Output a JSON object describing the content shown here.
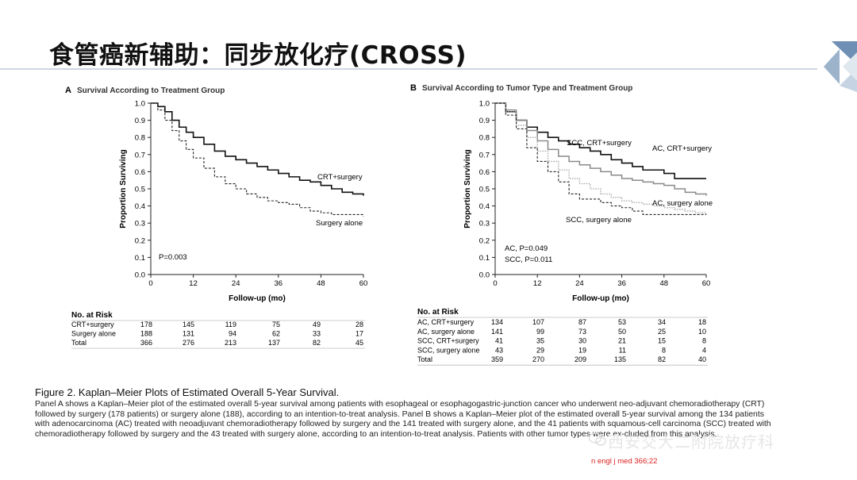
{
  "slide": {
    "title": "食管癌新辅助：同步放化疗(CROSS)",
    "reference": "n engl j med 366;22",
    "watermark": "西安交大二附院放疗科"
  },
  "caption": {
    "title": "Figure 2. Kaplan–Meier Plots of Estimated Overall 5-Year Survival.",
    "body": "Panel A shows a Kaplan–Meier plot of the estimated overall 5-year survival among patients with esophageal or esophagogastric-junction cancer who underwent neo-adjuvant chemoradiotherapy (CRT) followed by surgery (178 patients) or surgery alone (188), according to an intention-to-treat analysis. Panel B shows a Kaplan–Meier plot of the estimated overall 5-year survival among the 134 patients with adenocarcinoma (AC) treated with neoadjuvant chemoradiotherapy followed by surgery and the 141 treated with surgery alone, and the 41 patients with squamous-cell carcinoma (SCC) treated with chemoradiotherapy followed by surgery and the 43 treated with surgery alone, according to an intention-to-treat analysis. Patients with other tumor types were ex-cluded from this analysis."
  },
  "colors": {
    "dark": "#111111",
    "gray": "#888888",
    "lightgray": "#aaaaaa",
    "accent": "#8aa0b8"
  },
  "chart_data": [
    {
      "type": "line",
      "panel_letter": "A",
      "title": "Survival According to Treatment Group",
      "xlabel": "Follow-up (mo)",
      "ylabel": "Proportion Surviving",
      "xlim": [
        0,
        60
      ],
      "ylim": [
        0,
        1.0
      ],
      "xticks": [
        0,
        12,
        24,
        36,
        48,
        60
      ],
      "yticks": [
        0.0,
        0.1,
        0.2,
        0.3,
        0.4,
        0.5,
        0.6,
        0.7,
        0.8,
        0.9,
        1.0
      ],
      "grid": false,
      "annotations": [
        "P=0.003"
      ],
      "series": [
        {
          "name": "CRT+surgery",
          "style": "solid-dark",
          "x": [
            0,
            2,
            4,
            6,
            8,
            10,
            12,
            15,
            18,
            21,
            24,
            27,
            30,
            33,
            36,
            39,
            42,
            45,
            48,
            51,
            54,
            57,
            60
          ],
          "y": [
            1.0,
            0.98,
            0.95,
            0.9,
            0.86,
            0.83,
            0.8,
            0.76,
            0.72,
            0.69,
            0.67,
            0.65,
            0.63,
            0.61,
            0.59,
            0.57,
            0.55,
            0.54,
            0.52,
            0.5,
            0.48,
            0.47,
            0.46
          ]
        },
        {
          "name": "Surgery alone",
          "style": "dashed-dark",
          "x": [
            0,
            2,
            4,
            6,
            8,
            10,
            12,
            15,
            18,
            21,
            24,
            27,
            30,
            33,
            36,
            39,
            42,
            45,
            48,
            51,
            54,
            57,
            60
          ],
          "y": [
            1.0,
            0.96,
            0.9,
            0.84,
            0.78,
            0.73,
            0.68,
            0.62,
            0.57,
            0.53,
            0.5,
            0.47,
            0.45,
            0.43,
            0.42,
            0.41,
            0.39,
            0.37,
            0.36,
            0.35,
            0.35,
            0.35,
            0.34
          ]
        }
      ],
      "risk_table": {
        "title": "No. at Risk",
        "columns": [
          "0",
          "12",
          "24",
          "36",
          "48",
          "60"
        ],
        "rows": [
          {
            "label": "CRT+surgery",
            "values": [
              "178",
              "145",
              "119",
              "75",
              "49",
              "28"
            ]
          },
          {
            "label": "Surgery alone",
            "values": [
              "188",
              "131",
              "94",
              "62",
              "33",
              "17"
            ]
          },
          {
            "label": "Total",
            "values": [
              "366",
              "276",
              "213",
              "137",
              "82",
              "45"
            ]
          }
        ]
      }
    },
    {
      "type": "line",
      "panel_letter": "B",
      "title": "Survival According to Tumor Type and Treatment Group",
      "xlabel": "Follow-up (mo)",
      "ylabel": "Proportion Surviving",
      "xlim": [
        0,
        60
      ],
      "ylim": [
        0,
        1.0
      ],
      "xticks": [
        0,
        12,
        24,
        36,
        48,
        60
      ],
      "yticks": [
        0.0,
        0.1,
        0.2,
        0.3,
        0.4,
        0.5,
        0.6,
        0.7,
        0.8,
        0.9,
        1.0
      ],
      "grid": false,
      "annotations": [
        "AC, P=0.049",
        "SCC, P=0.011"
      ],
      "series": [
        {
          "name": "SCC, CRT+surgery",
          "style": "solid-dark",
          "x": [
            0,
            3,
            6,
            9,
            12,
            15,
            18,
            21,
            24,
            27,
            30,
            33,
            36,
            39,
            42,
            45,
            48,
            51,
            54,
            57,
            60
          ],
          "y": [
            1.0,
            0.95,
            0.9,
            0.86,
            0.83,
            0.8,
            0.78,
            0.76,
            0.74,
            0.72,
            0.7,
            0.67,
            0.65,
            0.63,
            0.61,
            0.61,
            0.59,
            0.56,
            0.56,
            0.56,
            0.56
          ]
        },
        {
          "name": "AC, CRT+surgery",
          "style": "solid-gray",
          "x": [
            0,
            3,
            6,
            9,
            12,
            15,
            18,
            21,
            24,
            27,
            30,
            33,
            36,
            39,
            42,
            45,
            48,
            51,
            54,
            57,
            60
          ],
          "y": [
            1.0,
            0.96,
            0.9,
            0.84,
            0.78,
            0.73,
            0.69,
            0.66,
            0.64,
            0.62,
            0.6,
            0.58,
            0.56,
            0.55,
            0.54,
            0.53,
            0.52,
            0.5,
            0.48,
            0.47,
            0.46
          ]
        },
        {
          "name": "AC, surgery alone",
          "style": "dotted-gray",
          "x": [
            0,
            3,
            6,
            9,
            12,
            15,
            18,
            21,
            24,
            27,
            30,
            33,
            36,
            39,
            42,
            45,
            48,
            51,
            54,
            57,
            60
          ],
          "y": [
            1.0,
            0.95,
            0.87,
            0.8,
            0.72,
            0.66,
            0.61,
            0.56,
            0.53,
            0.5,
            0.47,
            0.45,
            0.43,
            0.42,
            0.41,
            0.4,
            0.39,
            0.38,
            0.37,
            0.36,
            0.35
          ]
        },
        {
          "name": "SCC, surgery alone",
          "style": "dashed-dark",
          "x": [
            0,
            3,
            6,
            9,
            12,
            15,
            18,
            21,
            24,
            27,
            30,
            33,
            36,
            39,
            42,
            45,
            48,
            51,
            54,
            57,
            60
          ],
          "y": [
            1.0,
            0.93,
            0.85,
            0.74,
            0.66,
            0.6,
            0.54,
            0.47,
            0.44,
            0.44,
            0.42,
            0.4,
            0.39,
            0.37,
            0.35,
            0.35,
            0.35,
            0.35,
            0.35,
            0.35,
            0.35
          ]
        }
      ],
      "risk_table": {
        "title": "No. at Risk",
        "columns": [
          "0",
          "12",
          "24",
          "36",
          "48",
          "60"
        ],
        "rows": [
          {
            "label": "AC, CRT+surgery",
            "values": [
              "134",
              "107",
              "87",
              "53",
              "34",
              "18"
            ]
          },
          {
            "label": "AC, surgery alone",
            "values": [
              "141",
              "99",
              "73",
              "50",
              "25",
              "10"
            ]
          },
          {
            "label": "SCC, CRT+surgery",
            "values": [
              "41",
              "35",
              "30",
              "21",
              "15",
              "8"
            ]
          },
          {
            "label": "SCC, surgery alone",
            "values": [
              "43",
              "29",
              "19",
              "11",
              "8",
              "4"
            ]
          },
          {
            "label": "Total",
            "values": [
              "359",
              "270",
              "209",
              "135",
              "82",
              "40"
            ]
          }
        ]
      }
    }
  ]
}
